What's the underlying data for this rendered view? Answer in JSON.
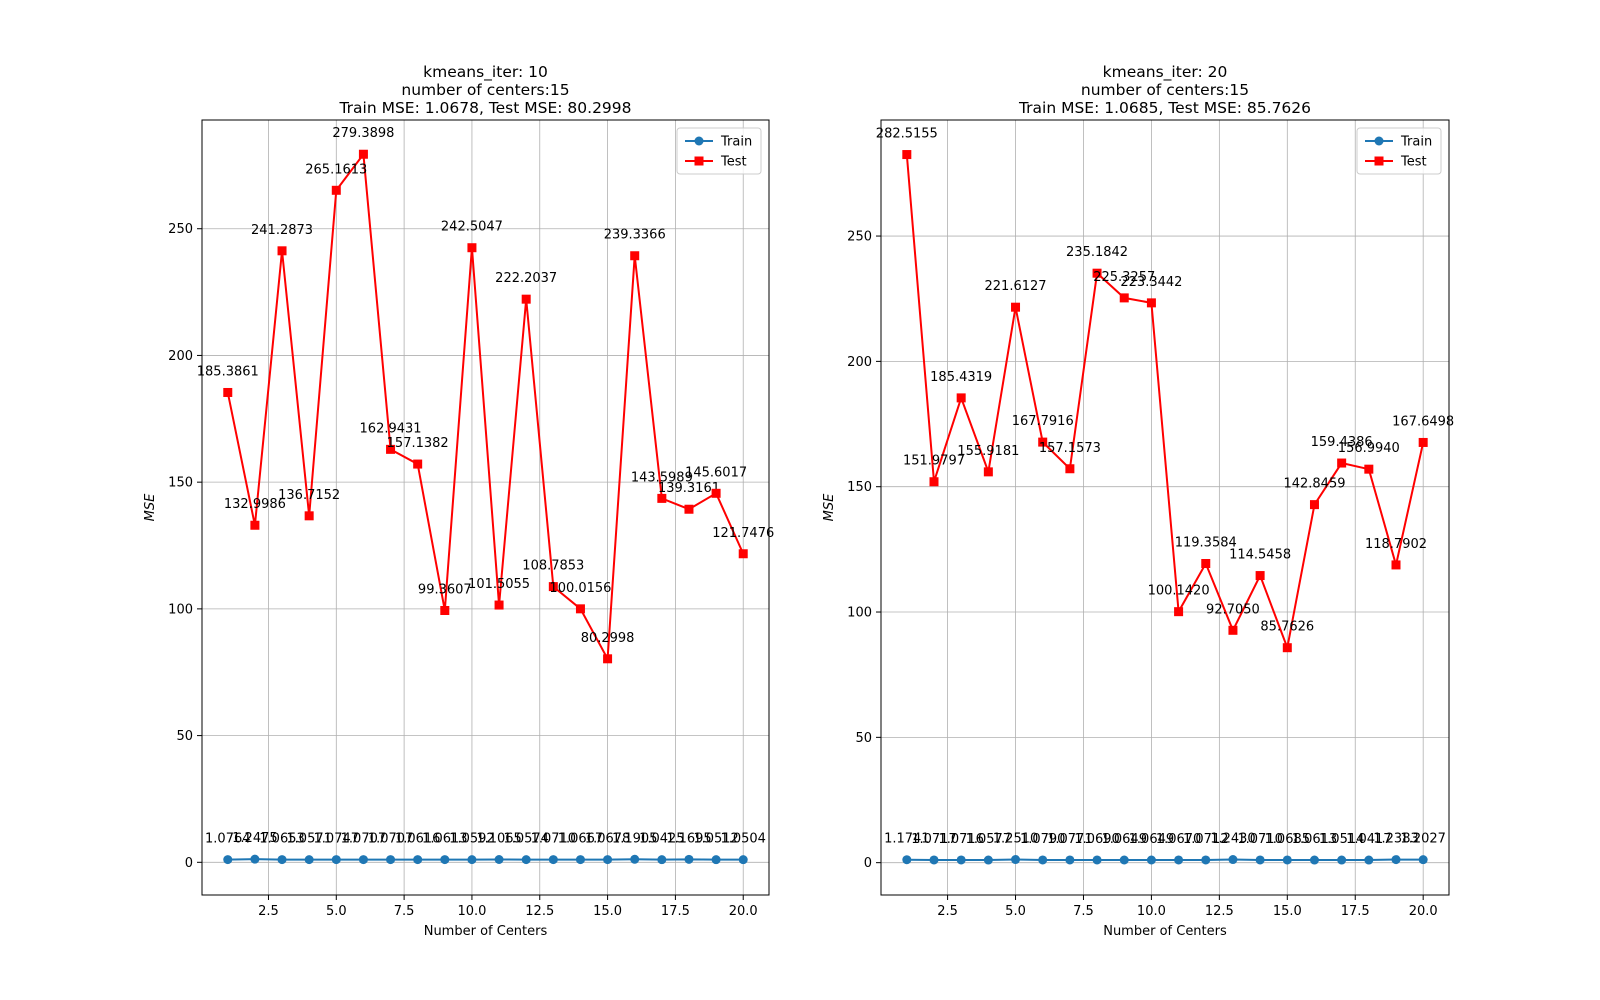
{
  "chart_data": [
    {
      "type": "line",
      "title_lines": [
        "kmeans_iter: 10",
        "number of centers:15",
        "Train MSE: 1.0678, Test MSE: 80.2998"
      ],
      "xlabel": "Number of Centers",
      "ylabel": "MSE",
      "xlim": [
        0.05,
        20.95
      ],
      "ylim": [
        -12.9,
        292.9
      ],
      "xticks": [
        2.5,
        5.0,
        7.5,
        10.0,
        12.5,
        15.0,
        17.5,
        20.0
      ],
      "xtick_labels": [
        "2.5",
        "5.0",
        "7.5",
        "10.0",
        "12.5",
        "15.0",
        "17.5",
        "20.0"
      ],
      "yticks": [
        0,
        50,
        100,
        150,
        200,
        250
      ],
      "ytick_labels": [
        "0",
        "50",
        "100",
        "150",
        "200",
        "250"
      ],
      "grid": true,
      "legend_position": "top-right",
      "x": [
        1,
        2,
        3,
        4,
        5,
        6,
        7,
        8,
        9,
        10,
        11,
        12,
        13,
        14,
        15,
        16,
        17,
        18,
        19,
        20
      ],
      "series": [
        {
          "name": "Train",
          "color": "#1f77b4",
          "marker": "circle",
          "values": [
            1.0764,
            1.2475,
            1.0653,
            1.0571,
            1.0747,
            1.0707,
            1.0707,
            1.0616,
            1.0613,
            1.0592,
            1.1065,
            1.0574,
            1.071,
            1.0667,
            1.0678,
            1.1905,
            1.0425,
            1.1695,
            1.0512,
            1.0504
          ],
          "labels": [
            "1.0764",
            "1.2475",
            "1.0653",
            "1.0571",
            "1.0747",
            "1.0707",
            "1.0707",
            "1.0616",
            "1.0613",
            "1.0592",
            "1.1065",
            "1.0574",
            "1.0710",
            "1.0667",
            "1.0678",
            "1.1905",
            "1.0425",
            "1.1695",
            "1.0512",
            "1.0504"
          ]
        },
        {
          "name": "Test",
          "color": "#ff0000",
          "marker": "square",
          "values": [
            185.3861,
            132.9986,
            241.2873,
            136.7152,
            265.1613,
            279.3898,
            162.9431,
            157.1382,
            99.3607,
            242.5047,
            101.5055,
            222.2037,
            108.7853,
            100.0156,
            80.2998,
            239.3366,
            143.5989,
            139.3161,
            145.6017,
            121.7476
          ],
          "labels": [
            "185.3861",
            "132.9986",
            "241.2873",
            "136.7152",
            "265.1613",
            "279.3898",
            "162.9431",
            "157.1382",
            "99.3607",
            "242.5047",
            "101.5055",
            "222.2037",
            "108.7853",
            "100.0156",
            "80.2998",
            "239.3366",
            "143.5989",
            "139.3161",
            "145.6017",
            "121.7476"
          ]
        }
      ]
    },
    {
      "type": "line",
      "title_lines": [
        "kmeans_iter: 20",
        "number of centers:15",
        "Train MSE: 1.0685, Test MSE: 85.7626"
      ],
      "xlabel": "Number of Centers",
      "ylabel": "MSE",
      "xlim": [
        0.05,
        20.95
      ],
      "ylim": [
        -12.9,
        296.3
      ],
      "xticks": [
        2.5,
        5.0,
        7.5,
        10.0,
        12.5,
        15.0,
        17.5,
        20.0
      ],
      "xtick_labels": [
        "2.5",
        "5.0",
        "7.5",
        "10.0",
        "12.5",
        "15.0",
        "17.5",
        "20.0"
      ],
      "yticks": [
        0,
        50,
        100,
        150,
        200,
        250
      ],
      "ytick_labels": [
        "0",
        "50",
        "100",
        "150",
        "200",
        "250"
      ],
      "grid": true,
      "legend_position": "top-right",
      "x": [
        1,
        2,
        3,
        4,
        5,
        6,
        7,
        8,
        9,
        10,
        11,
        12,
        13,
        14,
        15,
        16,
        17,
        18,
        19,
        20
      ],
      "series": [
        {
          "name": "Train",
          "color": "#1f77b4",
          "marker": "circle",
          "values": [
            1.1741,
            1.0717,
            1.0716,
            1.0577,
            1.251,
            1.079,
            1.0771,
            1.069,
            1.0649,
            1.0649,
            1.067,
            1.0712,
            1.243,
            1.071,
            1.0685,
            1.0613,
            1.0514,
            1.0417,
            1.2383,
            1.2027
          ],
          "labels": [
            "1.1741",
            "1.0717",
            "1.0716",
            "1.0577",
            "1.2510",
            "1.0790",
            "1.0771",
            "1.0690",
            "1.0649",
            "1.0649",
            "1.0670",
            "1.0712",
            "1.2430",
            "1.0710",
            "1.0685",
            "1.0613",
            "1.0514",
            "1.0417",
            "1.2383",
            "1.2027"
          ]
        },
        {
          "name": "Test",
          "color": "#ff0000",
          "marker": "square",
          "values": [
            282.5155,
            151.9797,
            185.4319,
            155.9181,
            221.6127,
            167.7916,
            157.1573,
            235.1842,
            225.3257,
            223.3442,
            100.142,
            119.3584,
            92.705,
            114.5458,
            85.7626,
            142.8459,
            159.4386,
            156.994,
            118.7902,
            167.6498
          ],
          "labels": [
            "282.5155",
            "151.9797",
            "185.4319",
            "155.9181",
            "221.6127",
            "167.7916",
            "157.1573",
            "235.1842",
            "225.3257",
            "223.3442",
            "100.1420",
            "119.3584",
            "92.7050",
            "114.5458",
            "85.7626",
            "142.8459",
            "159.4386",
            "156.9940",
            "118.7902",
            "167.6498"
          ]
        }
      ]
    }
  ]
}
